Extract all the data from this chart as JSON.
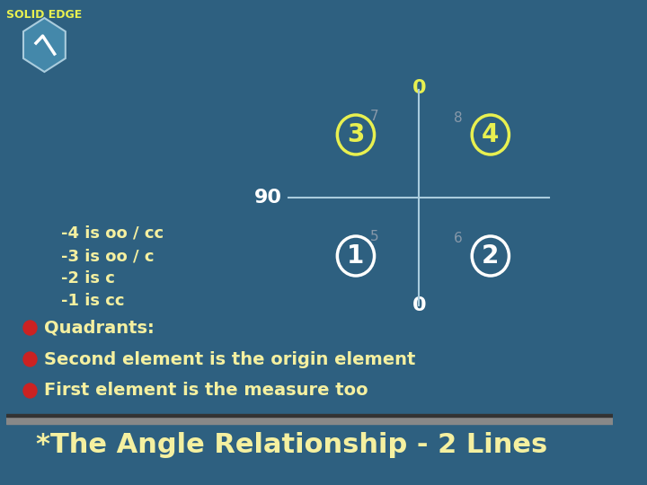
{
  "title": "*The Angle Relationship - 2 Lines",
  "title_color": "#F5F0A0",
  "bg_color": "#2E6080",
  "bullet_color": "#CC2222",
  "bullet_text_color": "#F5F0A0",
  "line1": "First element is the measure too",
  "line2": "Second element is the origin element",
  "line3": "Quadrants:",
  "sub1": "-1 is cc",
  "sub2": "-2 is c",
  "sub3": "-3 is oo / c",
  "sub4": "-4 is oo / cc",
  "axis_color": "#AACCDD",
  "q1_label": "1",
  "q2_label": "2",
  "q3_label": "3",
  "q4_label": "4",
  "q1_color": "#FFFFFF",
  "q2_color": "#FFFFFF",
  "q3_color": "#E8F050",
  "q4_color": "#E8F050",
  "q1_circle_color": "#FFFFFF",
  "q2_circle_color": "#FFFFFF",
  "q3_circle_color": "#E8F050",
  "q4_circle_color": "#E8F050",
  "num5": "5",
  "num6": "6",
  "num7": "7",
  "num8": "8",
  "num_color": "#8899AA",
  "label_0_top": "0",
  "label_90": "90",
  "label_0_bottom": "0",
  "label_color_top": "#FFFFFF",
  "label_color_90": "#FFFFFF",
  "label_color_bottom": "#E8F050"
}
